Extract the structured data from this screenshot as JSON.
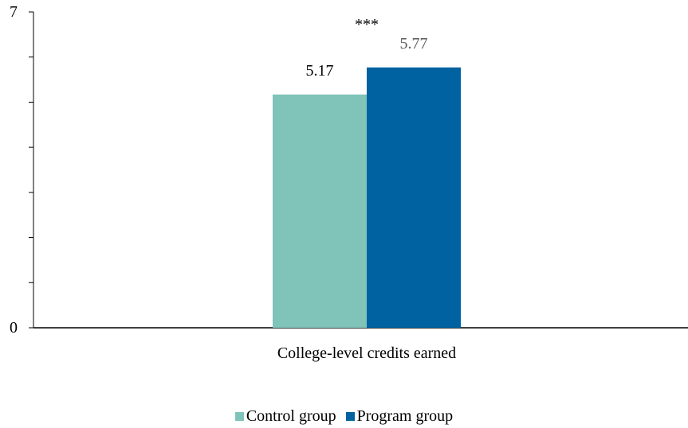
{
  "chart_data": {
    "type": "bar",
    "categories": [
      "College-level credits earned"
    ],
    "series": [
      {
        "name": "Control group",
        "values": [
          5.17
        ],
        "value_labels": [
          "5.17"
        ],
        "color": "#7fc3b9"
      },
      {
        "name": "Program group",
        "values": [
          5.77
        ],
        "value_labels": [
          "5.77"
        ],
        "color": "#0062a0"
      }
    ],
    "ylim": [
      0,
      7
    ],
    "y_tick_labels": [
      "0",
      "7"
    ],
    "significance": "***",
    "grid": false,
    "legend_position": "bottom"
  }
}
